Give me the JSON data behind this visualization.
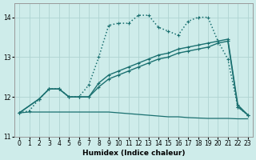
{
  "xlabel": "Humidex (Indice chaleur)",
  "xlim": [
    -0.5,
    23.5
  ],
  "ylim": [
    11.0,
    14.35
  ],
  "yticks": [
    11,
    12,
    13,
    14
  ],
  "xticks": [
    0,
    1,
    2,
    3,
    4,
    5,
    6,
    7,
    8,
    9,
    10,
    11,
    12,
    13,
    14,
    15,
    16,
    17,
    18,
    19,
    20,
    21,
    22,
    23
  ],
  "background_color": "#ceecea",
  "grid_color": "#aed4d2",
  "line_color": "#1a7070",
  "series": [
    {
      "x": [
        0,
        1,
        2,
        3,
        4,
        5,
        6,
        7,
        8,
        9,
        10,
        11,
        12,
        13,
        14,
        15,
        16,
        17,
        18,
        19,
        20,
        21,
        22,
        23
      ],
      "y": [
        11.6,
        11.62,
        11.62,
        11.62,
        11.62,
        11.62,
        11.62,
        11.62,
        11.62,
        11.62,
        11.6,
        11.58,
        11.56,
        11.54,
        11.52,
        11.5,
        11.5,
        11.48,
        11.47,
        11.46,
        11.46,
        11.46,
        11.45,
        11.45
      ],
      "linestyle": "-",
      "marker": null,
      "linewidth": 0.9
    },
    {
      "x": [
        0,
        2,
        3,
        4,
        5,
        6,
        7,
        8,
        9,
        10,
        11,
        12,
        13,
        14,
        15,
        16,
        17,
        18,
        19,
        20,
        21,
        22,
        23
      ],
      "y": [
        11.6,
        11.95,
        12.2,
        12.2,
        12.0,
        12.0,
        12.0,
        12.25,
        12.45,
        12.55,
        12.65,
        12.75,
        12.85,
        12.95,
        13.0,
        13.1,
        13.15,
        13.2,
        13.25,
        13.35,
        13.4,
        11.75,
        11.55
      ],
      "linestyle": "-",
      "marker": "+",
      "linewidth": 1.0
    },
    {
      "x": [
        0,
        2,
        3,
        4,
        5,
        6,
        7,
        8,
        9,
        10,
        11,
        12,
        13,
        14,
        15,
        16,
        17,
        18,
        19,
        20,
        21,
        22,
        23
      ],
      "y": [
        11.6,
        11.95,
        12.2,
        12.2,
        12.0,
        12.0,
        12.0,
        12.35,
        12.55,
        12.65,
        12.75,
        12.85,
        12.95,
        13.05,
        13.1,
        13.2,
        13.25,
        13.3,
        13.35,
        13.4,
        13.45,
        11.8,
        11.55
      ],
      "linestyle": "-",
      "marker": "+",
      "linewidth": 1.0
    },
    {
      "x": [
        0,
        1,
        2,
        3,
        4,
        5,
        6,
        7,
        8,
        9,
        10,
        11,
        12,
        13,
        14,
        15,
        16,
        17,
        18,
        19,
        20,
        21,
        22,
        23
      ],
      "y": [
        11.6,
        11.65,
        11.95,
        12.2,
        12.2,
        12.0,
        12.0,
        12.3,
        13.0,
        13.8,
        13.85,
        13.85,
        14.05,
        14.05,
        13.75,
        13.65,
        13.55,
        13.9,
        14.0,
        14.0,
        13.4,
        12.95,
        11.75,
        11.55
      ],
      "linestyle": ":",
      "marker": "+",
      "linewidth": 1.1
    }
  ]
}
